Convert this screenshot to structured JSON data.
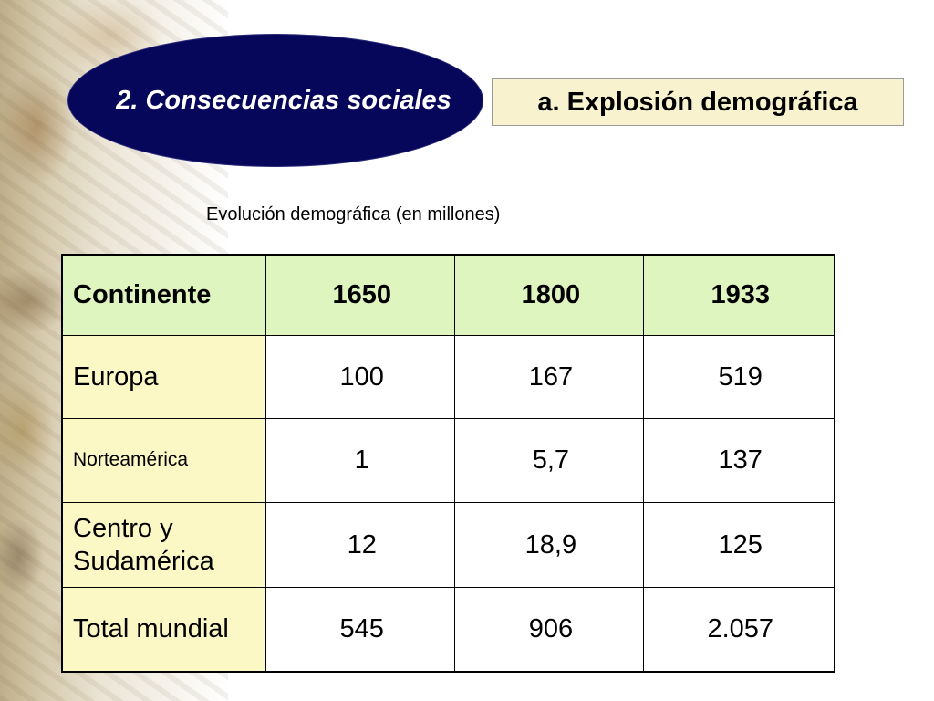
{
  "slide": {
    "section_title": "2. Consecuencias sociales",
    "subtitle": "a. Explosión demográfica",
    "caption": "Evolución demográfica (en millones)"
  },
  "table": {
    "headers": [
      "Continente",
      "1650",
      "1800",
      "1933"
    ],
    "rows": [
      [
        "Europa",
        "100",
        "167",
        "519"
      ],
      [
        "Norteamérica",
        "1",
        "5,7",
        "137"
      ],
      [
        "Centro y Sudamérica",
        "12",
        "18,9",
        "125"
      ],
      [
        "Total mundial",
        "545",
        "906",
        "2.057"
      ]
    ]
  },
  "colors": {
    "ellipse": "#06065a",
    "subtitle_box": "#f9f2cf",
    "header_row": "#dff5bf",
    "label_column": "#fcf8c5"
  }
}
